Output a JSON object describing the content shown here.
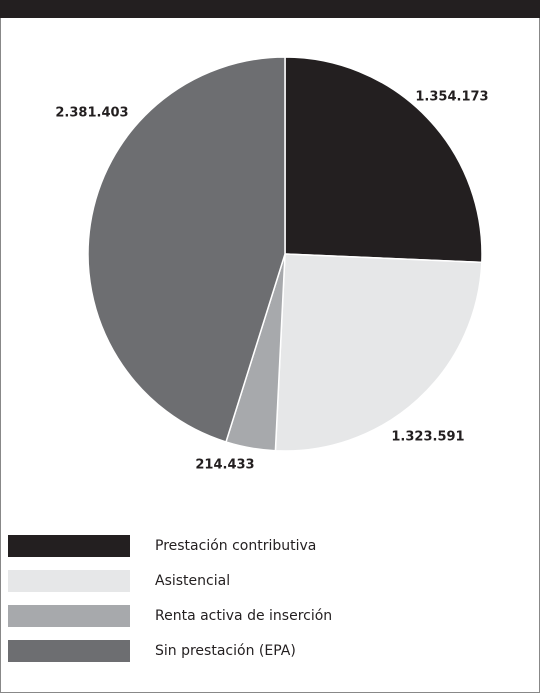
{
  "chart_data": {
    "type": "pie",
    "categories": [
      "Prestación contributiva",
      "Asistencial",
      "Renta activa de inserción",
      "Sin prestación (EPA)"
    ],
    "values": [
      1354173,
      1323591,
      214433,
      2381403
    ],
    "value_labels": [
      "1.354.173",
      "1.323.591",
      "214.433",
      "2.381.403"
    ],
    "colors": [
      "#231f20",
      "#e6e7e8",
      "#a7a9ac",
      "#6d6e71"
    ]
  }
}
